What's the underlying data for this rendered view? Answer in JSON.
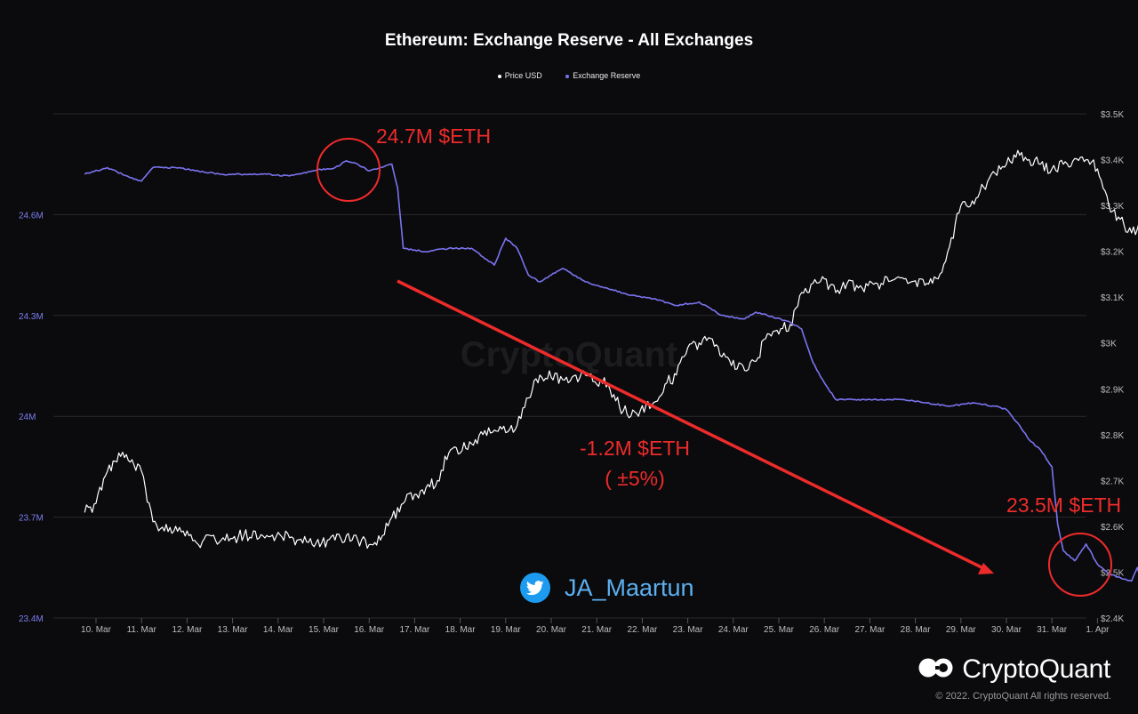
{
  "chart_data": {
    "type": "line",
    "title": "Ethereum: Exchange Reserve - All Exchanges",
    "x_ticks": [
      "10. Mar",
      "11. Mar",
      "12. Mar",
      "13. Mar",
      "14. Mar",
      "15. Mar",
      "16. Mar",
      "17. Mar",
      "18. Mar",
      "19. Mar",
      "20. Mar",
      "21. Mar",
      "22. Mar",
      "23. Mar",
      "24. Mar",
      "25. Mar",
      "26. Mar",
      "27. Mar",
      "28. Mar",
      "29. Mar",
      "30. Mar",
      "31. Mar",
      "1. Apr"
    ],
    "x_range": [
      "2022-03-09T06:00",
      "2022-04-01T06:00"
    ],
    "y_left": {
      "ticks": [
        "23.4M",
        "23.7M",
        "24M",
        "24.3M",
        "24.6M"
      ],
      "values": [
        23.4,
        23.7,
        24.0,
        24.3,
        24.6
      ],
      "range": [
        23.4,
        24.9
      ],
      "unit": "M"
    },
    "y_right": {
      "ticks": [
        "$2.4K",
        "$2.5K",
        "$2.6K",
        "$2.7K",
        "$2.8K",
        "$2.9K",
        "$3K",
        "$3.1K",
        "$3.2K",
        "$3.3K",
        "$3.4K",
        "$3.5K"
      ],
      "values": [
        2400,
        2500,
        2600,
        2700,
        2800,
        2900,
        3000,
        3100,
        3200,
        3300,
        3400,
        3500
      ],
      "range": [
        2400,
        3500
      ]
    },
    "legend_position": "top-center",
    "grid": true,
    "series": [
      {
        "name": "Price USD",
        "axis": "right",
        "color": "#ffffff",
        "points": [
          [
            "2022-03-09T00:00",
            2630
          ],
          [
            "2022-03-09T06:00",
            2650
          ],
          [
            "2022-03-09T12:00",
            2720
          ],
          [
            "2022-03-09T18:00",
            2760
          ],
          [
            "2022-03-10T00:00",
            2740
          ],
          [
            "2022-03-10T06:00",
            2720
          ],
          [
            "2022-03-10T12:00",
            2610
          ],
          [
            "2022-03-10T18:00",
            2590
          ],
          [
            "2022-03-11T00:00",
            2600
          ],
          [
            "2022-03-11T06:00",
            2590
          ],
          [
            "2022-03-11T12:00",
            2560
          ],
          [
            "2022-03-11T18:00",
            2580
          ],
          [
            "2022-03-12T00:00",
            2570
          ],
          [
            "2022-03-12T12:00",
            2580
          ],
          [
            "2022-03-13T00:00",
            2580
          ],
          [
            "2022-03-13T12:00",
            2575
          ],
          [
            "2022-03-14T00:00",
            2560
          ],
          [
            "2022-03-14T12:00",
            2570
          ],
          [
            "2022-03-14T18:00",
            2580
          ],
          [
            "2022-03-15T00:00",
            2570
          ],
          [
            "2022-03-15T06:00",
            2560
          ],
          [
            "2022-03-15T12:00",
            2570
          ],
          [
            "2022-03-15T18:00",
            2620
          ],
          [
            "2022-03-16T00:00",
            2650
          ],
          [
            "2022-03-16T06:00",
            2670
          ],
          [
            "2022-03-16T18:00",
            2700
          ],
          [
            "2022-03-17T00:00",
            2760
          ],
          [
            "2022-03-17T12:00",
            2780
          ],
          [
            "2022-03-17T18:00",
            2800
          ],
          [
            "2022-03-18T00:00",
            2810
          ],
          [
            "2022-03-18T12:00",
            2820
          ],
          [
            "2022-03-18T18:00",
            2880
          ],
          [
            "2022-03-19T00:00",
            2930
          ],
          [
            "2022-03-19T12:00",
            2920
          ],
          [
            "2022-03-20T00:00",
            2930
          ],
          [
            "2022-03-20T12:00",
            2910
          ],
          [
            "2022-03-20T18:00",
            2860
          ],
          [
            "2022-03-21T00:00",
            2840
          ],
          [
            "2022-03-21T12:00",
            2870
          ],
          [
            "2022-03-21T18:00",
            2910
          ],
          [
            "2022-03-22T00:00",
            2930
          ],
          [
            "2022-03-22T06:00",
            2990
          ],
          [
            "2022-03-22T12:00",
            3000
          ],
          [
            "2022-03-22T18:00",
            3010
          ],
          [
            "2022-03-23T00:00",
            2970
          ],
          [
            "2022-03-23T12:00",
            2940
          ],
          [
            "2022-03-23T18:00",
            2960
          ],
          [
            "2022-03-24T00:00",
            3020
          ],
          [
            "2022-03-24T12:00",
            3040
          ],
          [
            "2022-03-24T18:00",
            3110
          ],
          [
            "2022-03-25T00:00",
            3130
          ],
          [
            "2022-03-25T06:00",
            3140
          ],
          [
            "2022-03-25T12:00",
            3110
          ],
          [
            "2022-03-25T18:00",
            3130
          ],
          [
            "2022-03-26T00:00",
            3120
          ],
          [
            "2022-03-26T12:00",
            3130
          ],
          [
            "2022-03-27T00:00",
            3140
          ],
          [
            "2022-03-27T12:00",
            3130
          ],
          [
            "2022-03-27T18:00",
            3140
          ],
          [
            "2022-03-28T00:00",
            3210
          ],
          [
            "2022-03-28T06:00",
            3300
          ],
          [
            "2022-03-28T12:00",
            3310
          ],
          [
            "2022-03-28T18:00",
            3340
          ],
          [
            "2022-03-29T00:00",
            3370
          ],
          [
            "2022-03-29T06:00",
            3390
          ],
          [
            "2022-03-29T12:00",
            3420
          ],
          [
            "2022-03-29T18:00",
            3400
          ],
          [
            "2022-03-30T00:00",
            3390
          ],
          [
            "2022-03-30T06:00",
            3380
          ],
          [
            "2022-03-30T12:00",
            3390
          ],
          [
            "2022-03-31T00:00",
            3400
          ],
          [
            "2022-03-31T06:00",
            3380
          ],
          [
            "2022-03-31T12:00",
            3300
          ],
          [
            "2022-03-31T18:00",
            3270
          ],
          [
            "2022-04-01T00:00",
            3240
          ],
          [
            "2022-04-01T06:00",
            3260
          ]
        ]
      },
      {
        "name": "Exchange Reserve",
        "axis": "left",
        "color": "#7b74f0",
        "points": [
          [
            "2022-03-09T00:00",
            24.72
          ],
          [
            "2022-03-09T12:00",
            24.74
          ],
          [
            "2022-03-10T00:00",
            24.71
          ],
          [
            "2022-03-10T06:00",
            24.7
          ],
          [
            "2022-03-10T12:00",
            24.74
          ],
          [
            "2022-03-11T00:00",
            24.74
          ],
          [
            "2022-03-11T12:00",
            24.73
          ],
          [
            "2022-03-12T00:00",
            24.72
          ],
          [
            "2022-03-12T12:00",
            24.72
          ],
          [
            "2022-03-13T00:00",
            24.72
          ],
          [
            "2022-03-13T12:00",
            24.715
          ],
          [
            "2022-03-14T00:00",
            24.73
          ],
          [
            "2022-03-14T12:00",
            24.74
          ],
          [
            "2022-03-14T18:00",
            24.76
          ],
          [
            "2022-03-15T00:00",
            24.75
          ],
          [
            "2022-03-15T06:00",
            24.73
          ],
          [
            "2022-03-15T12:00",
            24.74
          ],
          [
            "2022-03-15T18:00",
            24.75
          ],
          [
            "2022-03-15T21:00",
            24.68
          ],
          [
            "2022-03-16T00:00",
            24.5
          ],
          [
            "2022-03-16T12:00",
            24.49
          ],
          [
            "2022-03-17T00:00",
            24.5
          ],
          [
            "2022-03-17T12:00",
            24.5
          ],
          [
            "2022-03-18T00:00",
            24.45
          ],
          [
            "2022-03-18T06:00",
            24.53
          ],
          [
            "2022-03-18T12:00",
            24.5
          ],
          [
            "2022-03-18T18:00",
            24.42
          ],
          [
            "2022-03-19T00:00",
            24.4
          ],
          [
            "2022-03-19T12:00",
            24.44
          ],
          [
            "2022-03-20T00:00",
            24.4
          ],
          [
            "2022-03-20T12:00",
            24.38
          ],
          [
            "2022-03-21T00:00",
            24.36
          ],
          [
            "2022-03-21T12:00",
            24.35
          ],
          [
            "2022-03-22T00:00",
            24.33
          ],
          [
            "2022-03-22T12:00",
            24.34
          ],
          [
            "2022-03-23T00:00",
            24.3
          ],
          [
            "2022-03-23T12:00",
            24.29
          ],
          [
            "2022-03-23T18:00",
            24.31
          ],
          [
            "2022-03-24T00:00",
            24.3
          ],
          [
            "2022-03-24T12:00",
            24.28
          ],
          [
            "2022-03-24T18:00",
            24.26
          ],
          [
            "2022-03-25T00:00",
            24.16
          ],
          [
            "2022-03-25T06:00",
            24.1
          ],
          [
            "2022-03-25T12:00",
            24.05
          ],
          [
            "2022-03-26T00:00",
            24.05
          ],
          [
            "2022-03-26T12:00",
            24.05
          ],
          [
            "2022-03-27T00:00",
            24.05
          ],
          [
            "2022-03-27T12:00",
            24.04
          ],
          [
            "2022-03-28T00:00",
            24.03
          ],
          [
            "2022-03-28T12:00",
            24.04
          ],
          [
            "2022-03-29T00:00",
            24.03
          ],
          [
            "2022-03-29T06:00",
            24.02
          ],
          [
            "2022-03-29T12:00",
            23.98
          ],
          [
            "2022-03-29T18:00",
            23.93
          ],
          [
            "2022-03-30T00:00",
            23.9
          ],
          [
            "2022-03-30T06:00",
            23.85
          ],
          [
            "2022-03-30T09:00",
            23.68
          ],
          [
            "2022-03-30T12:00",
            23.6
          ],
          [
            "2022-03-30T18:00",
            23.57
          ],
          [
            "2022-03-31T00:00",
            23.62
          ],
          [
            "2022-03-31T06:00",
            23.56
          ],
          [
            "2022-03-31T12:00",
            23.53
          ],
          [
            "2022-03-31T18:00",
            23.52
          ],
          [
            "2022-04-01T00:00",
            23.51
          ],
          [
            "2022-04-01T03:00",
            23.55
          ],
          [
            "2022-04-01T06:00",
            23.49
          ]
        ]
      }
    ],
    "annotations": [
      {
        "text": "24.7M $ETH",
        "color": "#ee2b2b"
      },
      {
        "text": "-1.2M $ETH",
        "color": "#ee2b2b"
      },
      {
        "text": "( ±5%)",
        "color": "#ee2b2b"
      },
      {
        "text": "23.5M $ETH",
        "color": "#ee2b2b"
      }
    ]
  },
  "watermark": "CryptoQuant",
  "twitter_handle": "JA_Maartun",
  "brand": {
    "name": "CryptoQuant"
  },
  "copyright": "© 2022. CryptoQuant All rights reserved.",
  "colors": {
    "background": "#0b0b0d",
    "reserve": "#7b74f0",
    "price": "#ffffff",
    "annotation": "#ee2b2b",
    "twitter": "#1d9bf0"
  },
  "icons": {
    "twitter": "twitter-bird-icon",
    "brand": "cryptoquant-logo-icon"
  }
}
